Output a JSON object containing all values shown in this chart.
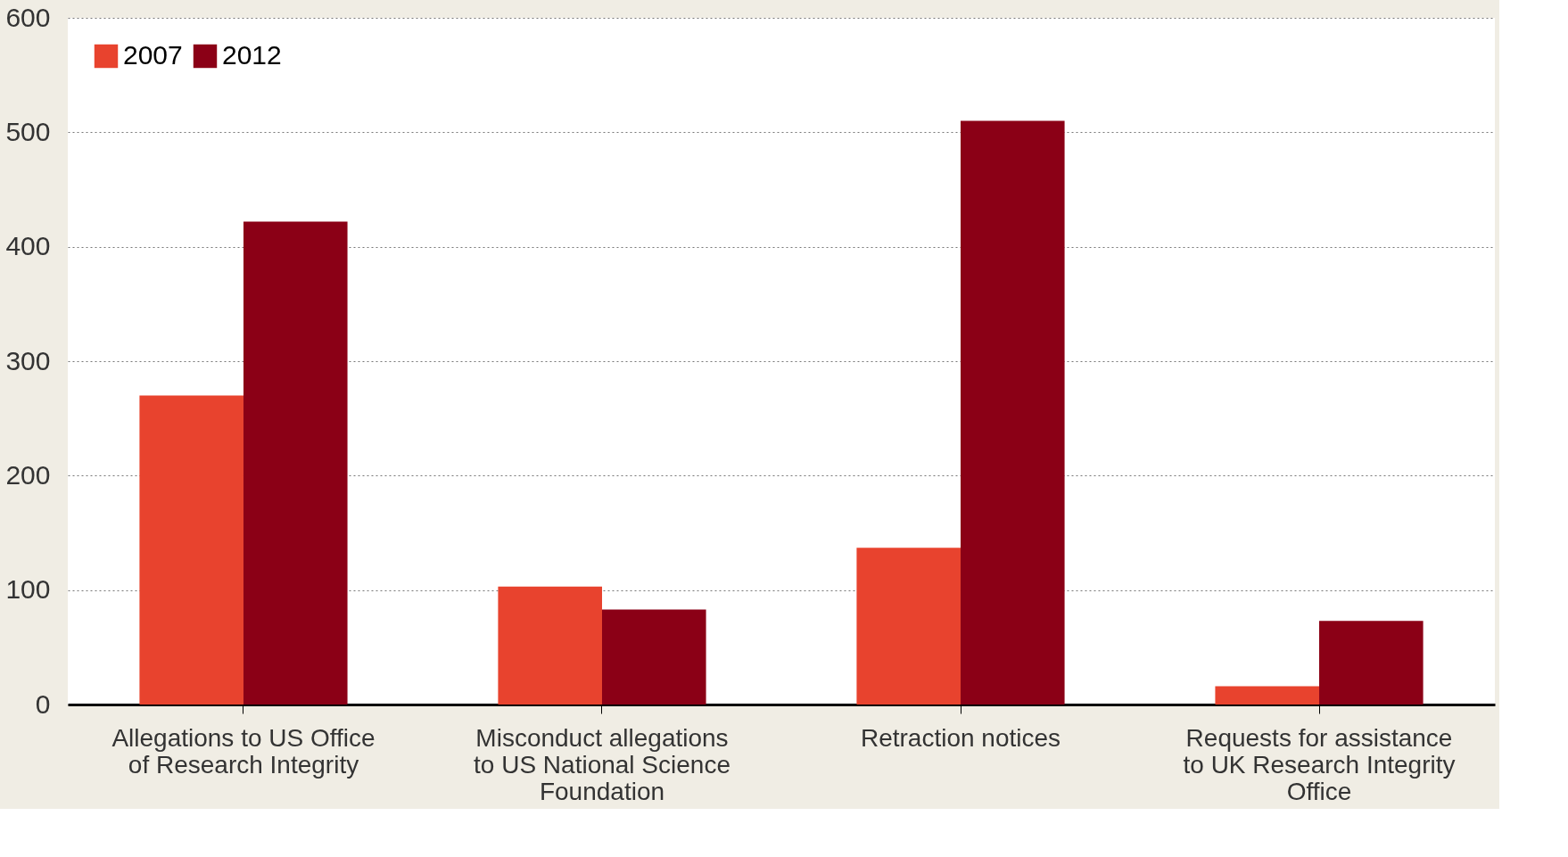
{
  "chart_data": {
    "type": "bar",
    "categories": [
      "Allegations to US Office of Research Integrity",
      "Misconduct allegations to US National Science Foundation",
      "Retraction notices",
      "Requests for assistance to UK Research Integrity Office"
    ],
    "series": [
      {
        "name": "2007",
        "color": "#e8432e",
        "values": [
          270,
          103,
          137,
          16
        ]
      },
      {
        "name": "2012",
        "color": "#8b0016",
        "values": [
          422,
          83,
          510,
          73
        ]
      }
    ],
    "ylim": [
      0,
      600
    ],
    "yticks": [
      0,
      100,
      200,
      300,
      400,
      500,
      600
    ],
    "grid": "y",
    "legend": "top left"
  }
}
